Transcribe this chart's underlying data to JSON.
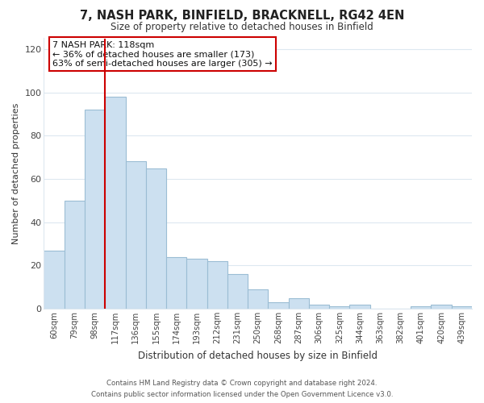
{
  "title": "7, NASH PARK, BINFIELD, BRACKNELL, RG42 4EN",
  "subtitle": "Size of property relative to detached houses in Binfield",
  "xlabel": "Distribution of detached houses by size in Binfield",
  "ylabel": "Number of detached properties",
  "categories": [
    "60sqm",
    "79sqm",
    "98sqm",
    "117sqm",
    "136sqm",
    "155sqm",
    "174sqm",
    "193sqm",
    "212sqm",
    "231sqm",
    "250sqm",
    "268sqm",
    "287sqm",
    "306sqm",
    "325sqm",
    "344sqm",
    "363sqm",
    "382sqm",
    "401sqm",
    "420sqm",
    "439sqm"
  ],
  "values": [
    27,
    50,
    92,
    98,
    68,
    65,
    24,
    23,
    22,
    16,
    9,
    3,
    5,
    2,
    1,
    2,
    0,
    0,
    1,
    2,
    1
  ],
  "bar_color": "#cce0f0",
  "bar_edge_color": "#9bbdd4",
  "highlight_index": 3,
  "highlight_line_color": "#cc0000",
  "ylim": [
    0,
    125
  ],
  "yticks": [
    0,
    20,
    40,
    60,
    80,
    100,
    120
  ],
  "annotation_title": "7 NASH PARK: 118sqm",
  "annotation_line1": "← 36% of detached houses are smaller (173)",
  "annotation_line2": "63% of semi-detached houses are larger (305) →",
  "annotation_box_color": "#ffffff",
  "annotation_box_edge_color": "#cc0000",
  "footer_line1": "Contains HM Land Registry data © Crown copyright and database right 2024.",
  "footer_line2": "Contains public sector information licensed under the Open Government Licence v3.0.",
  "background_color": "#ffffff",
  "grid_color": "#dde8f0"
}
